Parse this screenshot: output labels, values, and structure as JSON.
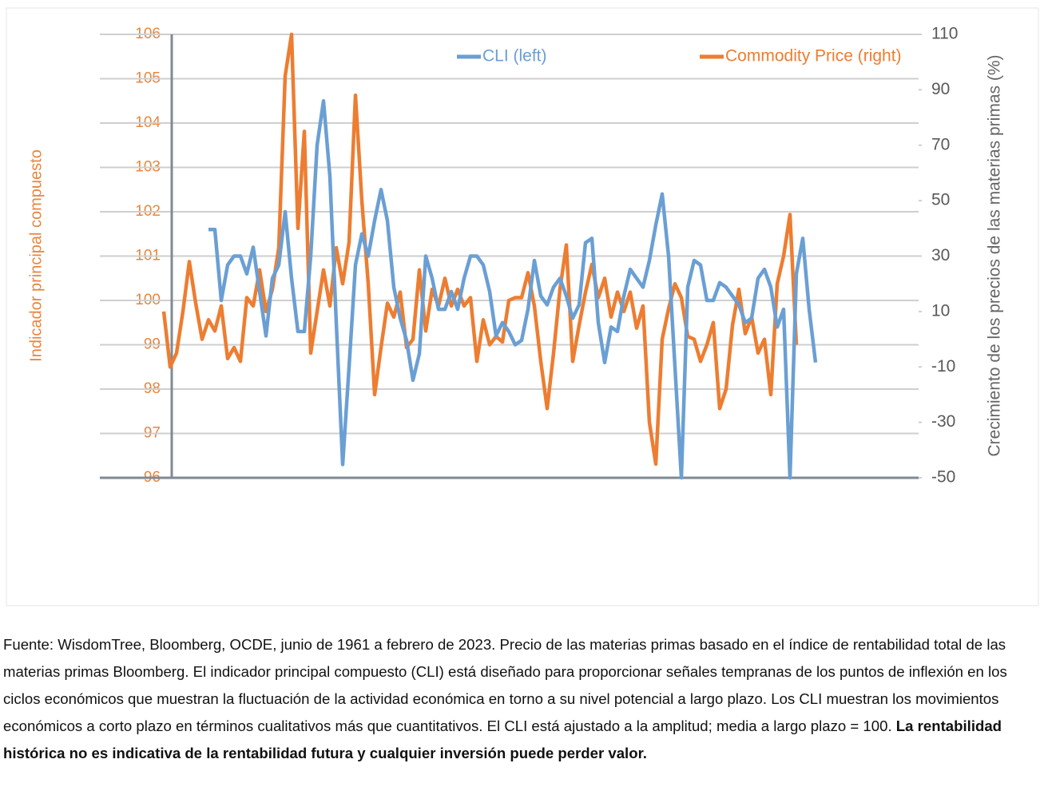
{
  "chart_data": {
    "type": "line",
    "categories": [
      null,
      null,
      null,
      null,
      null,
      null,
      null,
      null,
      null,
      null,
      null,
      null,
      null,
      null,
      null,
      null,
      null,
      null,
      null,
      null,
      null,
      null,
      null,
      null,
      null,
      null,
      null,
      null,
      null,
      null,
      null,
      null,
      null,
      null,
      null,
      null,
      null,
      null,
      null,
      null,
      null,
      null,
      null,
      null,
      null,
      null,
      null,
      null,
      null,
      null,
      null,
      null,
      null,
      null,
      null,
      null,
      null,
      null,
      null,
      null,
      null,
      null,
      null,
      null,
      null,
      null,
      null,
      null,
      null,
      null,
      null,
      null,
      null,
      null,
      null,
      null,
      null,
      null,
      null,
      null,
      null,
      null,
      null,
      null,
      null,
      null,
      null,
      null,
      null,
      null,
      null,
      null,
      null,
      null,
      null,
      null,
      null,
      null,
      null,
      null,
      null,
      null,
      null
    ],
    "series": [
      {
        "name": "CLI (left)",
        "color": "#6a9fd4",
        "axis": "y",
        "values": [
          null,
          null,
          null,
          null,
          null,
          null,
          null,
          101.6,
          101.6,
          100,
          100.8,
          101,
          101,
          100.6,
          101.2,
          100.2,
          99.2,
          100.5,
          100.8,
          102,
          100.5,
          99.3,
          99.3,
          101,
          103.5,
          104.5,
          102.8,
          99.5,
          96.3,
          98.5,
          100.8,
          101.5,
          101,
          101.8,
          102.5,
          101.8,
          100.3,
          99.6,
          99.1,
          98.2,
          98.8,
          101,
          100.5,
          99.8,
          99.8,
          100.2,
          99.8,
          100.5,
          101,
          101,
          100.8,
          100.2,
          99.2,
          99.5,
          99.3,
          99,
          99.1,
          99.8,
          100.9,
          100.1,
          99.9,
          100.3,
          100.5,
          100.1,
          99.6,
          99.9,
          101.3,
          101.4,
          99.5,
          98.6,
          99.4,
          99.3,
          100.1,
          100.7,
          100.5,
          100.3,
          100.9,
          101.7,
          102.4,
          101,
          98.5,
          96,
          100.3,
          100.9,
          100.8,
          100,
          100,
          100.4,
          100.3,
          100.1,
          99.9,
          99.5,
          99.6,
          100.5,
          100.7,
          100.3,
          99.4,
          99.8,
          96,
          100.6,
          101.4,
          99.8,
          98.6
        ]
      },
      {
        "name": "Commodity Price (right)",
        "color": "#ed7d31",
        "axis": "y2",
        "values": [
          10,
          -10,
          -5,
          10,
          28,
          13,
          0,
          7,
          3,
          12,
          -7,
          -3,
          -8,
          15,
          12,
          25,
          10,
          18,
          33,
          95,
          110,
          40,
          75,
          -5,
          10,
          25,
          12,
          33,
          20,
          35,
          88,
          50,
          20,
          -20,
          -3,
          13,
          8,
          17,
          -3,
          0,
          25,
          3,
          18,
          12,
          22,
          12,
          18,
          12,
          15,
          -8,
          7,
          -2,
          1,
          -1,
          14,
          15,
          15,
          24,
          12,
          -8,
          -25,
          -5,
          18,
          34,
          -8,
          5,
          17,
          27,
          15,
          22,
          8,
          17,
          10,
          17,
          4,
          12,
          -30,
          -45,
          0,
          11,
          20,
          15,
          1,
          0,
          -8,
          -2,
          6,
          -25,
          -18,
          5,
          18,
          2,
          8,
          -5,
          0,
          -20,
          20,
          30,
          45,
          -2,
          null,
          null,
          null
        ]
      }
    ],
    "ylabel": "Indicador principal compuesto",
    "y2label": "Crecimiento de los precios de las materias primas (%)",
    "ylim": [
      96,
      106
    ],
    "yticks": [
      96,
      97,
      98,
      99,
      100,
      101,
      102,
      103,
      104,
      105,
      106
    ],
    "y2lim": [
      -50,
      110
    ],
    "y2ticks": [
      -50,
      -30,
      -10,
      10,
      30,
      50,
      70,
      90,
      110
    ],
    "grid": true,
    "legend": "top"
  },
  "footnote": {
    "text": "Fuente: WisdomTree, Bloomberg, OCDE, junio de 1961 a febrero de 2023. Precio de las materias primas basado en el índice de rentabilidad total de las materias primas Bloomberg. El indicador principal compuesto (CLI) está diseñado para proporcionar señales tempranas de los puntos de inflexión en los ciclos económicos que muestran la fluctuación de la actividad económica en torno a su nivel potencial a largo plazo. Los CLI muestran los movimientos económicos a corto plazo en términos cualitativos más que cuantitativos. El CLI está ajustado a la amplitud; media a largo plazo = 100.",
    "bold": "La rentabilidad histórica no es indicativa de la rentabilidad futura y cualquier inversión puede perder valor."
  }
}
